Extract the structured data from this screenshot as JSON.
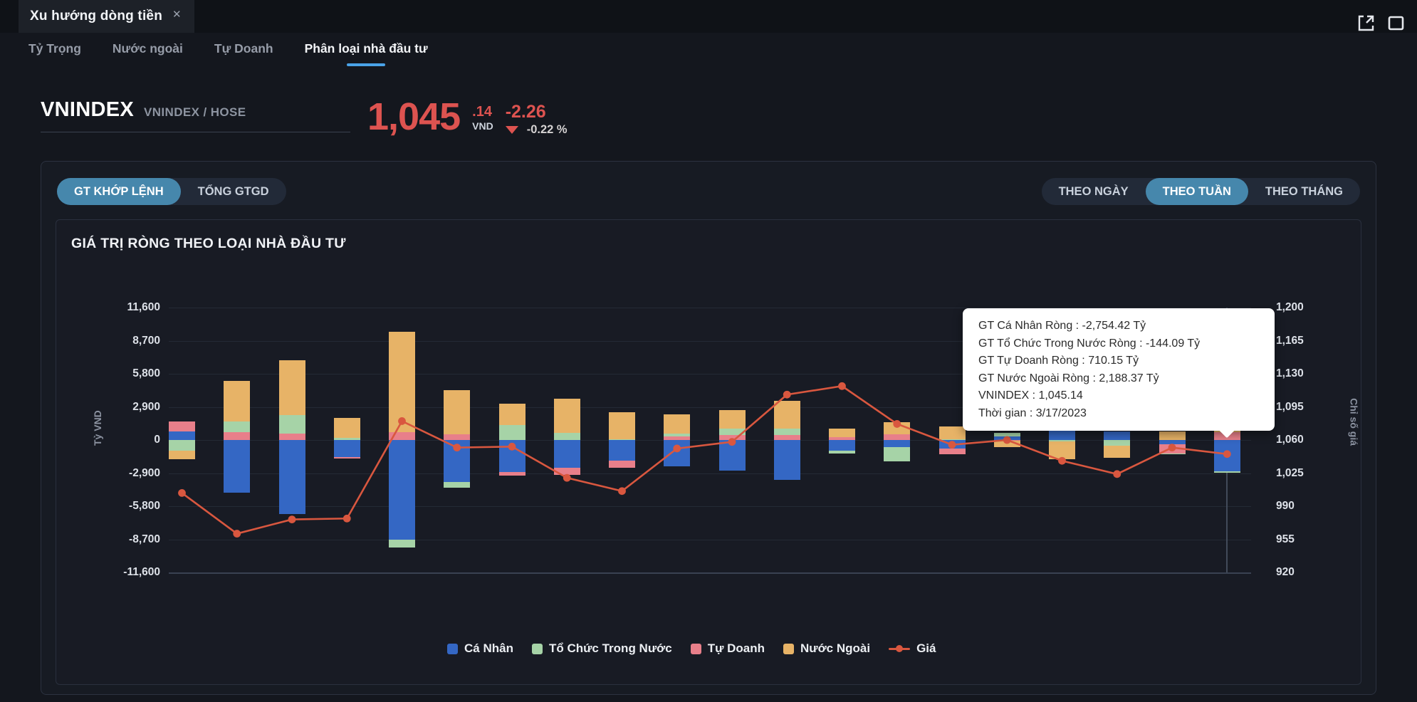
{
  "window": {
    "title": "Xu hướng dòng tiền",
    "close_label": "✕",
    "icons": [
      "open-external-icon",
      "maximize-window-icon"
    ]
  },
  "subnav": {
    "items": [
      {
        "label": "Tỷ Trọng",
        "active": false
      },
      {
        "label": "Nước ngoài",
        "active": false
      },
      {
        "label": "Tự Doanh",
        "active": false
      },
      {
        "label": "Phân loại nhà đầu tư",
        "active": true
      }
    ]
  },
  "instrument": {
    "name": "VNINDEX",
    "symbol": "VNINDEX / HOSE",
    "price": "1,045",
    "price_decimal": ".14",
    "currency": "VND",
    "change": "-2.26",
    "change_percent": "-0.22 %",
    "direction": "down"
  },
  "toolbar": {
    "volume_toggle": [
      {
        "label": "GT KHỚP LỆNH",
        "active": true
      },
      {
        "label": "TỔNG GTGD",
        "active": false
      }
    ],
    "period_toggle": [
      {
        "label": "THEO NGÀY",
        "active": false
      },
      {
        "label": "THEO TUẦN",
        "active": true
      },
      {
        "label": "THEO THÁNG",
        "active": false
      }
    ]
  },
  "tooltip": {
    "lines": [
      "GT Cá Nhân Ròng  : -2,754.42 Tỷ",
      "GT Tổ Chức Trong Nước Ròng : -144.09 Tỷ",
      "GT Tự Doanh Ròng : 710.15 Tỷ",
      "GT Nước Ngoài Ròng : 2,188.37 Tỷ",
      "VNINDEX : 1,045.14",
      "Thời gian : 3/17/2023"
    ]
  },
  "chart_data": {
    "type": "bar",
    "subtype": "stacked-bars-with-line-overlay",
    "title": "GIÁ TRỊ RÒNG THEO LOẠI NHÀ ĐẦU TƯ",
    "x_unit": "weeks (THEO TUẦN), no x tick labels shown, last week = 3/17/2023",
    "y_left": {
      "title": "Tỷ VND",
      "min": -11600,
      "max": 11600,
      "ticks": [
        "11,600",
        "8,700",
        "5,800",
        "2,900",
        "0",
        "-2,900",
        "-5,800",
        "-8,700",
        "-11,600"
      ]
    },
    "y_right": {
      "title": "Chỉ số giá",
      "min": 920,
      "max": 1200,
      "ticks": [
        "1,200",
        "1,165",
        "1,130",
        "1,095",
        "1,060",
        "1,025",
        "990",
        "955",
        "920"
      ]
    },
    "grid": true,
    "legend_position": "bottom-center",
    "stack_order_from_zero": [
      "Cá Nhân",
      "Tự Doanh",
      "Tổ Chức Trong Nước",
      "Nước Ngoài"
    ],
    "series": [
      {
        "name": "Cá Nhân",
        "color": "#3467c4",
        "values": [
          730,
          -4630,
          -6510,
          -1480,
          -8760,
          -3700,
          -2820,
          -2440,
          -1815,
          -2310,
          -2690,
          -3500,
          -960,
          -650,
          -730,
          310,
          940,
          750,
          -355,
          -2754.42
        ]
      },
      {
        "name": "Tổ Chức Trong Nước",
        "color": "#a6d3a7",
        "values": [
          -940,
          940,
          1630,
          190,
          -630,
          -500,
          1315,
          625,
          60,
          250,
          560,
          560,
          -210,
          -1190,
          60,
          310,
          -100,
          -520,
          -85,
          -144.09
        ]
      },
      {
        "name": "Tự Doanh",
        "color": "#e87f8a",
        "values": [
          875,
          690,
          560,
          -170,
          690,
          500,
          -310,
          -630,
          -625,
          310,
          440,
          440,
          250,
          500,
          -520,
          -60,
          0,
          0,
          -810,
          710.15
        ]
      },
      {
        "name": "Nước Ngoài",
        "color": "#e7b367",
        "values": [
          -770,
          3570,
          4820,
          1750,
          8760,
          3880,
          1875,
          3000,
          2380,
          1690,
          1630,
          2440,
          770,
          1070,
          1130,
          -560,
          -1565,
          -1045,
          750,
          2188.37
        ]
      }
    ],
    "line": {
      "name": "Giá",
      "color": "#d9573f",
      "values": [
        1004,
        961,
        976,
        977,
        1080,
        1052,
        1053,
        1020,
        1006,
        1051,
        1058,
        1108,
        1117,
        1077,
        1055,
        1060,
        1038,
        1024,
        1052,
        1045.14
      ]
    },
    "hovered_bar_index": 19,
    "legend": [
      "Cá Nhân",
      "Tổ Chức Trong Nước",
      "Tự Doanh",
      "Nước Ngoài",
      "Giá"
    ]
  },
  "colors": {
    "accent_blue": "#4aa3e8",
    "pill_active": "#4687ac",
    "price_red": "#dd5350",
    "line_red": "#d9573f",
    "bar_blue": "#3467c4",
    "bar_green": "#a6d3a7",
    "bar_pink": "#e87f8a",
    "bar_orange": "#e7b367",
    "panel_bg": "#181b24",
    "page_bg": "#14171e"
  }
}
